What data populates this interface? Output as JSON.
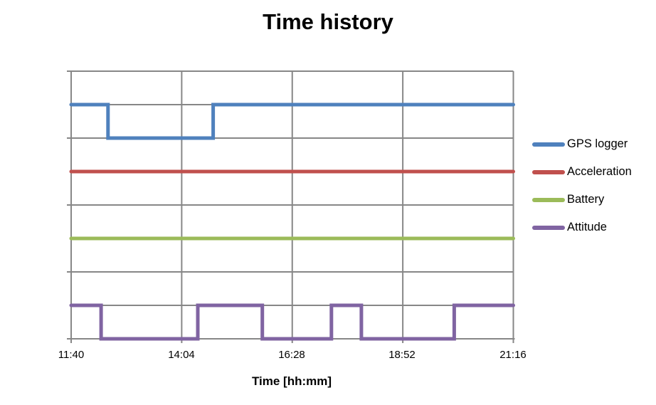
{
  "chart_data": {
    "type": "line",
    "step": true,
    "title": "Time history",
    "xlabel": "Time [hh:mm]",
    "x_tick_labels": [
      "11:40",
      "14:04",
      "16:28",
      "18:52",
      "21:16"
    ],
    "x_minutes_range": [
      0,
      576
    ],
    "x_tick_interval_minutes": 144,
    "ylim": [
      0,
      8
    ],
    "y_gridline_step": 1,
    "y_axis_tick_step": 2,
    "y_axis_labels_visible": false,
    "grid_on": true,
    "grid_color": "#878787",
    "legend_position": "right",
    "series": [
      {
        "name": "GPS logger",
        "color": "#4F81BD",
        "points": [
          [
            0,
            7
          ],
          [
            48,
            7
          ],
          [
            48,
            6
          ],
          [
            185,
            6
          ],
          [
            185,
            7
          ],
          [
            576,
            7
          ]
        ]
      },
      {
        "name": "Acceleration",
        "color": "#C0504D",
        "points": [
          [
            0,
            5
          ],
          [
            576,
            5
          ]
        ]
      },
      {
        "name": "Battery",
        "color": "#9BBB59",
        "points": [
          [
            0,
            3
          ],
          [
            576,
            3
          ]
        ]
      },
      {
        "name": "Attitude",
        "color": "#8064A2",
        "points": [
          [
            0,
            1
          ],
          [
            39,
            1
          ],
          [
            39,
            0
          ],
          [
            165,
            0
          ],
          [
            165,
            1
          ],
          [
            249,
            1
          ],
          [
            249,
            0
          ],
          [
            339,
            0
          ],
          [
            339,
            1
          ],
          [
            378,
            1
          ],
          [
            378,
            0
          ],
          [
            499,
            0
          ],
          [
            499,
            1
          ],
          [
            576,
            1
          ]
        ]
      }
    ]
  }
}
